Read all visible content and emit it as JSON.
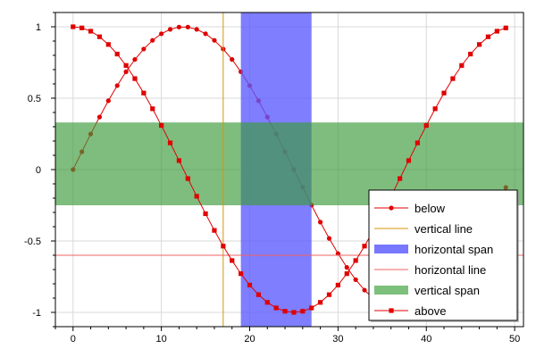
{
  "chart_data": {
    "type": "line",
    "title": "",
    "xlabel": "",
    "ylabel": "",
    "xlim": [
      -2,
      51
    ],
    "ylim": [
      -1.1,
      1.1
    ],
    "x_ticks": [
      0,
      10,
      20,
      30,
      40,
      50
    ],
    "x_tick_labels": [
      "0",
      "10",
      "20",
      "30",
      "40",
      "50"
    ],
    "y_ticks": [
      1,
      0.5,
      0,
      -0.5,
      -1
    ],
    "y_tick_labels": [
      "1",
      "0.5",
      "0",
      "-0.5",
      "-1"
    ],
    "x_minor_step": 2,
    "y_minor_step": 0.1,
    "grid": true,
    "legend_position": "bottom-right",
    "legend": [
      {
        "key": "below",
        "label": "below",
        "kind": "line-circle",
        "color": "#e00000"
      },
      {
        "key": "vline",
        "label": "vertical line",
        "kind": "line",
        "color": "#d4960a"
      },
      {
        "key": "hspan",
        "label": "horizontal span",
        "kind": "rect",
        "color": "#7878ff"
      },
      {
        "key": "hline",
        "label": "horizontal line",
        "kind": "line",
        "color": "#f06060"
      },
      {
        "key": "vspan",
        "label": "vertical span",
        "kind": "rect",
        "color": "#7cc07c"
      },
      {
        "key": "above",
        "label": "above",
        "kind": "line-square",
        "color": "#e00000"
      }
    ],
    "series": [
      {
        "key": "below",
        "marker": "circle",
        "color": "#e00000",
        "x": [
          0,
          1,
          2,
          3,
          4,
          5,
          6,
          7,
          8,
          9,
          10,
          11,
          12,
          13,
          14,
          15,
          16,
          17,
          18,
          19,
          20,
          21,
          22,
          23,
          24,
          25,
          26,
          27,
          28,
          29,
          30,
          31,
          32,
          33,
          34,
          35,
          36,
          37,
          38,
          39,
          40,
          41,
          42,
          43,
          44,
          45,
          46,
          47,
          48,
          49
        ],
        "y": [
          0.0,
          0.125,
          0.249,
          0.368,
          0.482,
          0.588,
          0.685,
          0.771,
          0.844,
          0.905,
          0.951,
          0.982,
          0.998,
          0.998,
          0.982,
          0.951,
          0.905,
          0.844,
          0.771,
          0.685,
          0.588,
          0.482,
          0.368,
          0.249,
          0.125,
          0.0,
          -0.125,
          -0.249,
          -0.368,
          -0.482,
          -0.588,
          -0.685,
          -0.771,
          -0.844,
          -0.905,
          -0.951,
          -0.982,
          -0.998,
          -0.998,
          -0.982,
          -0.951,
          -0.905,
          -0.844,
          -0.771,
          -0.685,
          -0.588,
          -0.482,
          -0.368,
          -0.249,
          -0.125
        ]
      },
      {
        "key": "above",
        "marker": "square",
        "color": "#e00000",
        "x": [
          0,
          1,
          2,
          3,
          4,
          5,
          6,
          7,
          8,
          9,
          10,
          11,
          12,
          13,
          14,
          15,
          16,
          17,
          18,
          19,
          20,
          21,
          22,
          23,
          24,
          25,
          26,
          27,
          28,
          29,
          30,
          31,
          32,
          33,
          34,
          35,
          36,
          37,
          38,
          39,
          40,
          41,
          42,
          43,
          44,
          45,
          46,
          47,
          48,
          49
        ],
        "y": [
          1.0,
          0.992,
          0.969,
          0.93,
          0.876,
          0.809,
          0.729,
          0.637,
          0.536,
          0.426,
          0.309,
          0.187,
          0.063,
          -0.063,
          -0.187,
          -0.309,
          -0.426,
          -0.536,
          -0.637,
          -0.729,
          -0.809,
          -0.876,
          -0.93,
          -0.969,
          -0.992,
          -1.0,
          -0.992,
          -0.969,
          -0.93,
          -0.876,
          -0.809,
          -0.729,
          -0.637,
          -0.536,
          -0.426,
          -0.309,
          -0.187,
          -0.063,
          0.063,
          0.187,
          0.309,
          0.426,
          0.536,
          0.637,
          0.729,
          0.809,
          0.876,
          0.93,
          0.969,
          0.992
        ]
      }
    ],
    "vertical_line": {
      "x": 17,
      "color": "#d4960a"
    },
    "horizontal_line": {
      "y": -0.6,
      "color": "#f06060"
    },
    "horizontal_span": {
      "x_from": 19,
      "x_to": 27,
      "color": "#5a5aff",
      "opacity": 0.78
    },
    "vertical_span": {
      "y_from": -0.25,
      "y_to": 0.33,
      "color": "#3c9b3c",
      "opacity": 0.66
    }
  }
}
